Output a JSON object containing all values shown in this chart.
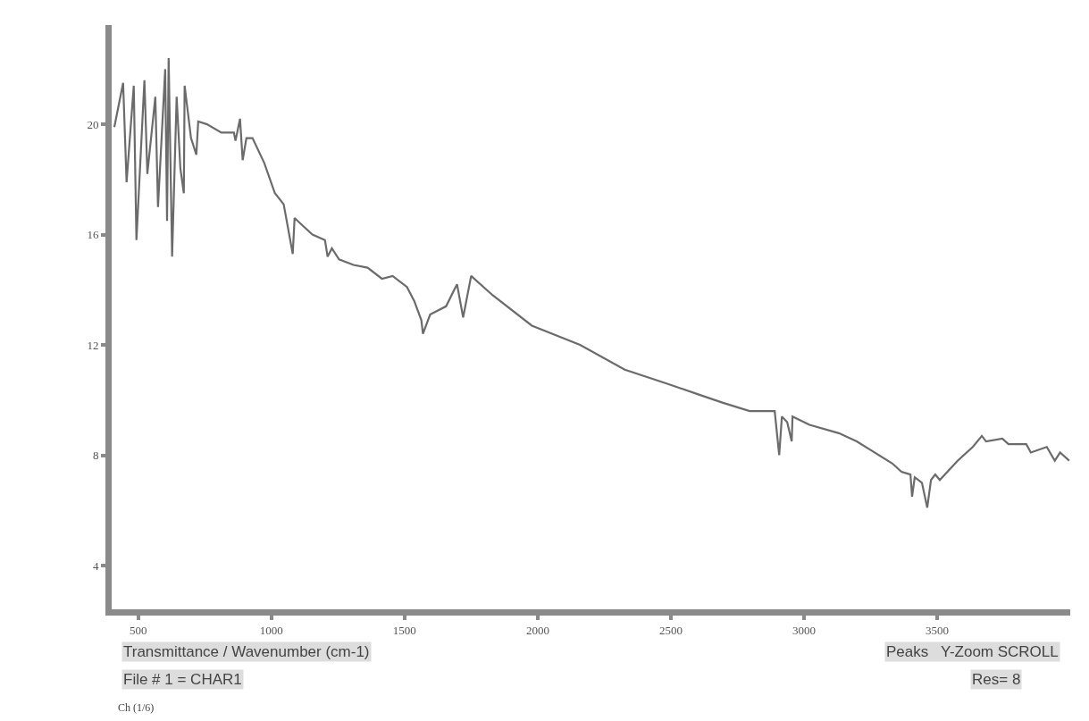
{
  "chart_data": {
    "type": "line",
    "x": [
      410,
      443,
      456,
      483,
      493,
      523,
      534,
      564,
      574,
      601,
      608,
      614,
      627,
      644,
      658,
      671,
      674,
      698,
      718,
      725,
      758,
      812,
      859,
      865,
      882,
      892,
      906,
      929,
      973,
      1013,
      1046,
      1080,
      1087,
      1120,
      1154,
      1201,
      1211,
      1227,
      1254,
      1308,
      1361,
      1415,
      1455,
      1509,
      1536,
      1563,
      1569,
      1596,
      1656,
      1697,
      1720,
      1750,
      1831,
      1978,
      2159,
      2327,
      2484,
      2605,
      2696,
      2796,
      2890,
      2907,
      2917,
      2937,
      2954,
      2957,
      3021,
      3131,
      3198,
      3265,
      3332,
      3366,
      3400,
      3406,
      3416,
      3443,
      3463,
      3477,
      3493,
      3510,
      3577,
      3634,
      3668,
      3684,
      3745,
      3768,
      3835,
      3852,
      3912,
      3942,
      3962,
      3996
    ],
    "series": [
      {
        "color": "#6b6b6b",
        "values": [
          19.9,
          21.5,
          17.9,
          21.4,
          15.8,
          21.6,
          18.2,
          21.0,
          17.0,
          22.0,
          16.5,
          22.4,
          15.2,
          21.0,
          18.4,
          17.5,
          21.4,
          19.5,
          18.9,
          20.1,
          20.0,
          19.7,
          19.7,
          19.4,
          20.2,
          18.7,
          19.5,
          19.5,
          18.6,
          17.5,
          17.1,
          15.3,
          16.6,
          16.3,
          16.0,
          15.8,
          15.2,
          15.5,
          15.1,
          14.9,
          14.8,
          14.4,
          14.5,
          14.1,
          13.6,
          12.9,
          12.4,
          13.1,
          13.4,
          14.2,
          13.0,
          14.5,
          13.8,
          12.7,
          12.0,
          11.1,
          10.6,
          10.2,
          9.9,
          9.6,
          9.6,
          8.0,
          9.4,
          9.2,
          8.5,
          9.4,
          9.1,
          8.8,
          8.5,
          8.1,
          7.7,
          7.4,
          7.3,
          6.5,
          7.2,
          7.0,
          6.1,
          7.1,
          7.3,
          7.1,
          7.8,
          8.3,
          8.7,
          8.5,
          8.6,
          8.4,
          8.4,
          8.1,
          8.3,
          7.8,
          8.1,
          7.8
        ]
      }
    ],
    "xlim": [
      400,
      4000
    ],
    "ylim": [
      2.4,
      23.6
    ],
    "xticks": [
      500,
      1000,
      1500,
      2000,
      2500,
      3000,
      3500
    ],
    "yticks": [
      4,
      8,
      12,
      16,
      20
    ],
    "marker": "none",
    "line_style": "solid",
    "annotations": [
      "Transmittance / Wavenumber (cm-1)",
      "File # 1 = CHAR1",
      "Ch (1/6)",
      "Peaks   Y-Zoom SCROLL",
      "Res= 8"
    ]
  }
}
